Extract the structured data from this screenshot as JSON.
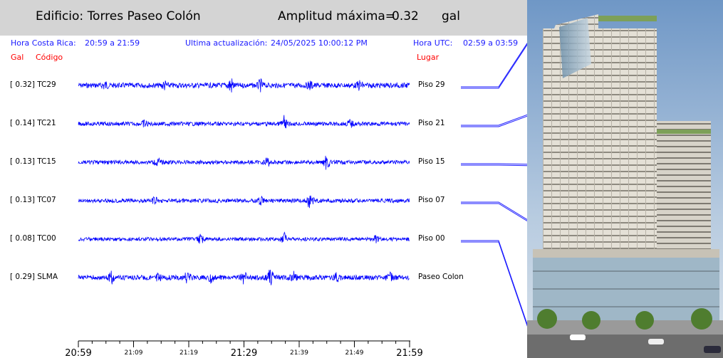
{
  "header": {
    "building_label": "Edificio: Torres Paseo Colón",
    "amp_label": "Amplitud máxima=",
    "amp_value": "0.32",
    "amp_unit": "gal"
  },
  "info": {
    "cr_label": "Hora Costa Rica:",
    "cr_range": "20:59 a 21:59",
    "update_label": "Ultima actualización:",
    "update_value": "24/05/2025 10:00:12 PM",
    "utc_label": "Hora UTC:",
    "utc_range": "02:59 a 03:59"
  },
  "columns": {
    "gal": "Gal",
    "code": "Código",
    "place": "Lugar"
  },
  "colors": {
    "trace": "#0000ff",
    "header_bg": "#d4d4d4",
    "info_text": "#1a1aff",
    "column_text": "#ff0000"
  },
  "photo_icon": "building-photo",
  "chart_data": {
    "type": "line",
    "xlabel": "",
    "ylabel": "",
    "x_ticks": [
      "20:59",
      "21:09",
      "21:19",
      "21:29",
      "21:39",
      "21:49",
      "21:59"
    ],
    "x_range": [
      "20:59",
      "21:59"
    ],
    "series": [
      {
        "name": "TC29",
        "peak": "0.32",
        "place": "Piso 29",
        "peak_value": 0.32,
        "bursts": [
          [
            0.46,
            1.0
          ],
          [
            0.55,
            0.55
          ],
          [
            0.85,
            0.5
          ],
          [
            0.26,
            0.45
          ],
          [
            0.08,
            0.45
          ],
          [
            0.7,
            0.4
          ]
        ]
      },
      {
        "name": "TC21",
        "peak": "0.14",
        "place": "Piso 21",
        "peak_value": 0.14,
        "bursts": [
          [
            0.62,
            0.9
          ],
          [
            0.82,
            0.45
          ],
          [
            0.2,
            0.4
          ]
        ]
      },
      {
        "name": "TC15",
        "peak": "0.13",
        "place": "Piso 15",
        "peak_value": 0.13,
        "bursts": [
          [
            0.75,
            0.9
          ],
          [
            0.57,
            0.5
          ],
          [
            0.24,
            0.4
          ]
        ]
      },
      {
        "name": "TC07",
        "peak": "0.13",
        "place": "Piso 07",
        "peak_value": 0.13,
        "bursts": [
          [
            0.7,
            1.0
          ],
          [
            0.55,
            0.6
          ],
          [
            0.23,
            0.4
          ]
        ]
      },
      {
        "name": "TC00",
        "peak": "0.08",
        "place": "Piso 00",
        "peak_value": 0.08,
        "bursts": [
          [
            0.62,
            0.8
          ],
          [
            0.37,
            0.5
          ],
          [
            0.9,
            0.4
          ]
        ]
      },
      {
        "name": "SLMA",
        "peak": "0.29",
        "place": "Paseo Colon",
        "peak_value": 0.29,
        "bursts": [
          [
            0.58,
            1.0
          ],
          [
            0.33,
            0.8
          ],
          [
            0.1,
            0.6
          ],
          [
            0.24,
            0.6
          ],
          [
            0.5,
            0.6
          ],
          [
            0.65,
            0.55
          ],
          [
            0.78,
            0.5
          ],
          [
            0.4,
            0.5
          ],
          [
            0.94,
            0.5
          ]
        ]
      }
    ]
  }
}
